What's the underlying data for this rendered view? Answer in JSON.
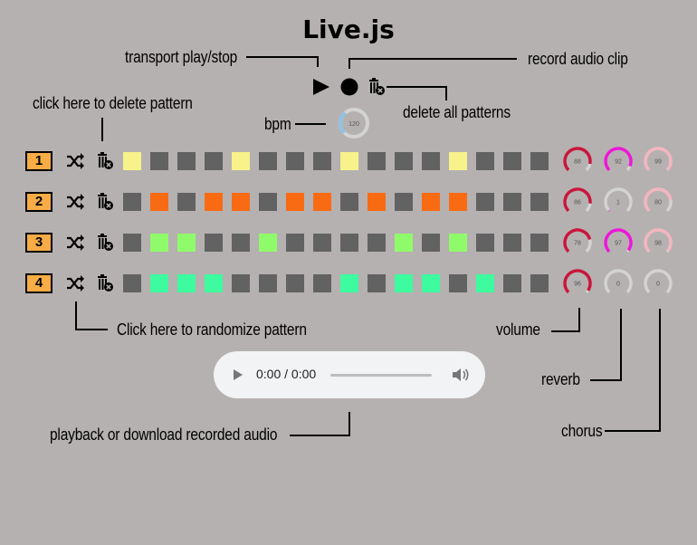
{
  "title": "Live.js",
  "annotations": {
    "transport": "transport play/stop",
    "record": "record audio clip",
    "delete_pattern": "click here to delete pattern",
    "bpm": "bpm",
    "delete_all": "delete all patterns",
    "randomize": "Click here to randomize pattern",
    "volume": "volume",
    "reverb": "reverb",
    "chorus": "chorus",
    "playback": "playback or download recorded audio"
  },
  "bpm": {
    "value": "120",
    "level": 0.35,
    "color": "#8ec3e6"
  },
  "icons": {
    "play": "play-icon",
    "record": "record-icon",
    "delete": "trash-icon",
    "shuffle": "shuffle-icon"
  },
  "colors": {
    "off": "#626262",
    "rows": [
      "#f7f28a",
      "#f96b13",
      "#90fb6a",
      "#3dfb9e"
    ],
    "row_label": "#f7ac45",
    "volume": "#c8163c",
    "reverb": "#eb17d6",
    "chorus": "#f4b5c0",
    "zero": "#d3d3d3"
  },
  "patterns": [
    {
      "label": "1",
      "steps": [
        1,
        0,
        0,
        0,
        1,
        0,
        0,
        0,
        1,
        0,
        0,
        0,
        1,
        0,
        0,
        0
      ],
      "volume": "88",
      "reverb": "92",
      "chorus": "99"
    },
    {
      "label": "2",
      "steps": [
        0,
        1,
        0,
        1,
        1,
        0,
        1,
        1,
        0,
        1,
        0,
        1,
        1,
        0,
        0,
        0
      ],
      "volume": "86",
      "reverb": "1",
      "chorus": "80"
    },
    {
      "label": "3",
      "steps": [
        0,
        1,
        1,
        0,
        0,
        1,
        0,
        0,
        0,
        0,
        1,
        0,
        1,
        0,
        0,
        0
      ],
      "volume": "78",
      "reverb": "97",
      "chorus": "98"
    },
    {
      "label": "4",
      "steps": [
        0,
        1,
        1,
        1,
        0,
        0,
        0,
        0,
        1,
        0,
        1,
        1,
        0,
        1,
        0,
        0
      ],
      "volume": "96",
      "reverb": "0",
      "chorus": "0"
    }
  ],
  "audio": {
    "time": "0:00 / 0:00"
  }
}
